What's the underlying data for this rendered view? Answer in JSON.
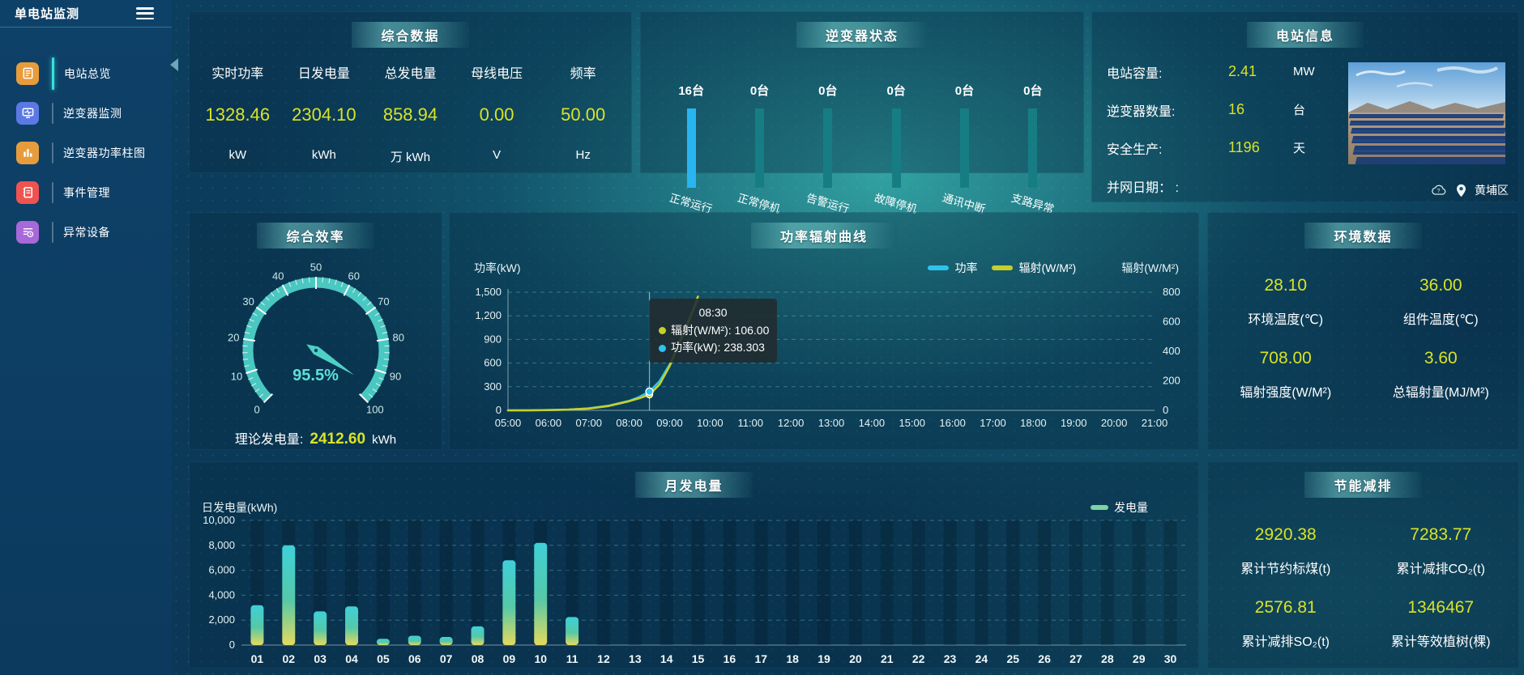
{
  "app": {
    "title": "单电站监测"
  },
  "sidebar": {
    "items": [
      {
        "label": "电站总览",
        "active": true
      },
      {
        "label": "逆变器监测",
        "active": false
      },
      {
        "label": "逆变器功率柱图",
        "active": false
      },
      {
        "label": "事件管理",
        "active": false
      },
      {
        "label": "异常设备",
        "active": false
      }
    ]
  },
  "panels": {
    "overview": {
      "title": "综合数据",
      "stats": [
        {
          "label": "实时功率",
          "value": "1328.46",
          "unit": "kW"
        },
        {
          "label": "日发电量",
          "value": "2304.10",
          "unit": "kWh"
        },
        {
          "label": "总发电量",
          "value": "858.94",
          "unit": "万 kWh"
        },
        {
          "label": "母线电压",
          "value": "0.00",
          "unit": "V"
        },
        {
          "label": "频率",
          "value": "50.00",
          "unit": "Hz"
        }
      ]
    },
    "inverter_status": {
      "title": "逆变器状态",
      "items": [
        {
          "count": "16台",
          "label": "正常运行"
        },
        {
          "count": "0台",
          "label": "正常停机"
        },
        {
          "count": "0台",
          "label": "告警运行"
        },
        {
          "count": "0台",
          "label": "故障停机"
        },
        {
          "count": "0台",
          "label": "通讯中断"
        },
        {
          "count": "0台",
          "label": "支路异常"
        }
      ]
    },
    "station_info": {
      "title": "电站信息",
      "rows": [
        {
          "label": "电站容量:",
          "value": "2.41",
          "unit": "MW"
        },
        {
          "label": "逆变器数量:",
          "value": "16",
          "unit": "台"
        },
        {
          "label": "安全生产:",
          "value": "1196",
          "unit": "天"
        },
        {
          "label": "并网日期： :",
          "value": "",
          "unit": ""
        }
      ],
      "location": "黄埔区"
    },
    "efficiency": {
      "title": "综合效率",
      "value_label": "95.5%",
      "footer_label": "理论发电量:",
      "footer_value": "2412.60",
      "footer_unit": "kWh"
    },
    "curve": {
      "title": "功率辐射曲线",
      "y_left_title": "功率(kW)",
      "y_right_title": "辐射(W/M²)",
      "legend": [
        "功率",
        "辐射(W/M²)"
      ],
      "tooltip": {
        "time": "08:30",
        "rows": [
          {
            "text": "辐射(W/M²): 106.00"
          },
          {
            "text": "功率(kW): 238.303"
          }
        ]
      }
    },
    "environment": {
      "title": "环境数据",
      "stats": [
        {
          "value": "28.10",
          "label": "环境温度(℃)"
        },
        {
          "value": "36.00",
          "label": "组件温度(℃)"
        },
        {
          "value": "708.00",
          "label": "辐射强度(W/M²)"
        },
        {
          "value": "3.60",
          "label": "总辐射量(MJ/M²)"
        }
      ]
    },
    "monthly": {
      "title": "月发电量",
      "y_title": "日发电量(kWh)",
      "legend": "发电量"
    },
    "savings": {
      "title": "节能减排",
      "stats": [
        {
          "value": "2920.38",
          "label": "累计节约标煤(t)"
        },
        {
          "value": "7283.77",
          "label": "累计减排CO₂(t)"
        },
        {
          "value": "2576.81",
          "label": "累计减排SO₂(t)"
        },
        {
          "value": "1346467",
          "label": "累计等效植树(棵)"
        }
      ]
    }
  },
  "colors": {
    "value_yellow": "#d9e326",
    "gauge_teal": "#4ed0c7",
    "power_cyan": "#2ec3ee",
    "radiation_yellow": "#c7cf2a",
    "inverter_active_blue": "#29b5ef",
    "inverter_idle_teal": "#177d84"
  },
  "chart_data": [
    {
      "id": "power_radiation",
      "type": "line",
      "title": "功率辐射曲线",
      "x_labels": [
        "05:00",
        "06:00",
        "07:00",
        "08:00",
        "09:00",
        "10:00",
        "11:00",
        "12:00",
        "13:00",
        "14:00",
        "15:00",
        "16:00",
        "17:00",
        "18:00",
        "19:00",
        "20:00",
        "21:00"
      ],
      "x_range": [
        5,
        21
      ],
      "y_left": {
        "title": "功率(kW)",
        "max": 1500,
        "ticks": [
          0,
          300,
          600,
          900,
          1200,
          1500
        ]
      },
      "y_right": {
        "title": "辐射(W/M²)",
        "max": 800,
        "ticks": [
          0,
          200,
          400,
          600,
          800
        ]
      },
      "series": [
        {
          "name": "功率",
          "axis": "left",
          "color": "#2ec3ee",
          "points": [
            [
              5,
              0
            ],
            [
              5.5,
              0
            ],
            [
              6,
              3
            ],
            [
              6.5,
              8
            ],
            [
              7,
              25
            ],
            [
              7.5,
              60
            ],
            [
              8,
              120
            ],
            [
              8.25,
              170
            ],
            [
              8.5,
              238.3
            ],
            [
              8.75,
              370
            ],
            [
              9,
              580
            ],
            [
              9.25,
              880
            ],
            [
              9.5,
              1180
            ],
            [
              9.7,
              1400
            ]
          ]
        },
        {
          "name": "辐射(W/M²)",
          "axis": "right",
          "color": "#c7cf2a",
          "points": [
            [
              5,
              0
            ],
            [
              5.5,
              0
            ],
            [
              6,
              2
            ],
            [
              6.5,
              5
            ],
            [
              7,
              12
            ],
            [
              7.5,
              30
            ],
            [
              8,
              62
            ],
            [
              8.25,
              82
            ],
            [
              8.5,
              106
            ],
            [
              8.75,
              175
            ],
            [
              9,
              300
            ],
            [
              9.25,
              460
            ],
            [
              9.5,
              620
            ],
            [
              9.7,
              770
            ]
          ]
        }
      ],
      "crosshair": {
        "x": 8.5,
        "label": "08:30",
        "power": 238.303,
        "radiation": 106
      },
      "legend_position": "top-right"
    },
    {
      "id": "daily_generation",
      "type": "bar",
      "title": "月发电量",
      "categories": [
        "01",
        "02",
        "03",
        "04",
        "05",
        "06",
        "07",
        "08",
        "09",
        "10",
        "11",
        "12",
        "13",
        "14",
        "15",
        "16",
        "17",
        "18",
        "19",
        "20",
        "21",
        "22",
        "23",
        "24",
        "25",
        "26",
        "27",
        "28",
        "29",
        "30"
      ],
      "values": [
        3200,
        8000,
        2700,
        3100,
        500,
        750,
        650,
        1500,
        6800,
        8200,
        2250,
        0,
        0,
        0,
        0,
        0,
        0,
        0,
        0,
        0,
        0,
        0,
        0,
        0,
        0,
        0,
        0,
        0,
        0,
        0
      ],
      "ylabel": "日发电量(kWh)",
      "ylim": [
        0,
        10000
      ],
      "yticks": [
        0,
        2000,
        4000,
        6000,
        8000,
        10000
      ],
      "legend": "发电量"
    },
    {
      "id": "inverter_status",
      "type": "bar",
      "categories": [
        "正常运行",
        "正常停机",
        "告警运行",
        "故障停机",
        "通讯中断",
        "支路异常"
      ],
      "values": [
        16,
        0,
        0,
        0,
        0,
        0
      ],
      "unit": "台"
    },
    {
      "id": "efficiency_gauge",
      "type": "gauge",
      "value": 95.5,
      "min": 0,
      "max": 100,
      "unit": "%",
      "tick_labels": [
        0,
        10,
        20,
        30,
        40,
        50,
        60,
        70,
        80,
        90,
        100
      ]
    }
  ]
}
